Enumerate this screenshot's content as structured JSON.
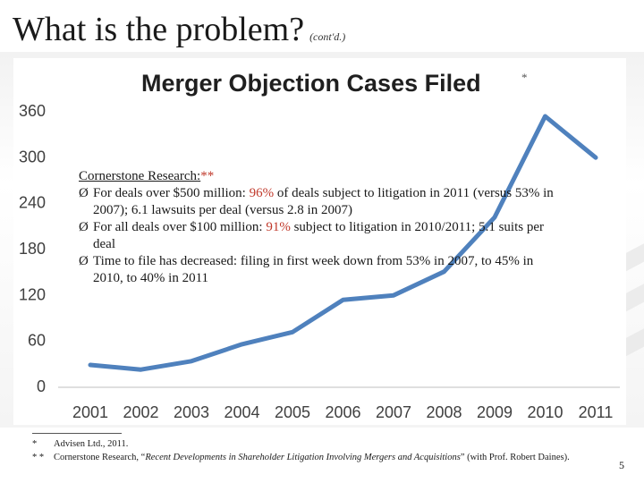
{
  "slide": {
    "title": "What is the problem?",
    "title_note": "(cont'd.)",
    "page_number": "5"
  },
  "chart_data": {
    "type": "line",
    "title": "Merger Objection Cases Filed",
    "title_marker": "*",
    "categories": [
      "2001",
      "2002",
      "2003",
      "2004",
      "2005",
      "2006",
      "2007",
      "2008",
      "2009",
      "2010",
      "2011"
    ],
    "series": [
      {
        "values": [
          28,
          22,
          33,
          55,
          71,
          113,
          119,
          150,
          221,
          353,
          299
        ]
      }
    ],
    "yticks": [
      0,
      60,
      120,
      180,
      240,
      300,
      360
    ],
    "ylim": [
      0,
      360
    ],
    "line_color": "#4f81bd",
    "grid": false
  },
  "textbox": {
    "heading": "Cornerstone Research",
    "heading_suffix": ":",
    "heading_marker": "**",
    "bullets": [
      {
        "before": "For deals over $500 million: ",
        "highlight": "96%",
        "after": " of deals subject to litigation in 2011 (versus 53% in 2007); 6.1 lawsuits per deal (versus 2.8 in 2007)"
      },
      {
        "before": "For all deals over $100 million: ",
        "highlight": "91%",
        "after": " subject to litigation in 2010/2011; 5.1 suits per deal"
      },
      {
        "before": "Time to file has decreased:  filing in first week down from 53% in 2007, to 45% in 2010, to 40% in 2011",
        "highlight": "",
        "after": ""
      }
    ],
    "bullet_glyph": "Ø",
    "highlight_color": "#c0392b"
  },
  "footnotes": [
    {
      "mark": "*",
      "pre": "Advisen Ltd., 2011.",
      "title": "",
      "post": ""
    },
    {
      "mark": "* *",
      "pre": "Cornerstone Research, “",
      "title": "Recent Developments in Shareholder Litigation Involving Mergers and Acquisitions",
      "post": "” (with Prof. Robert Daines)."
    }
  ]
}
